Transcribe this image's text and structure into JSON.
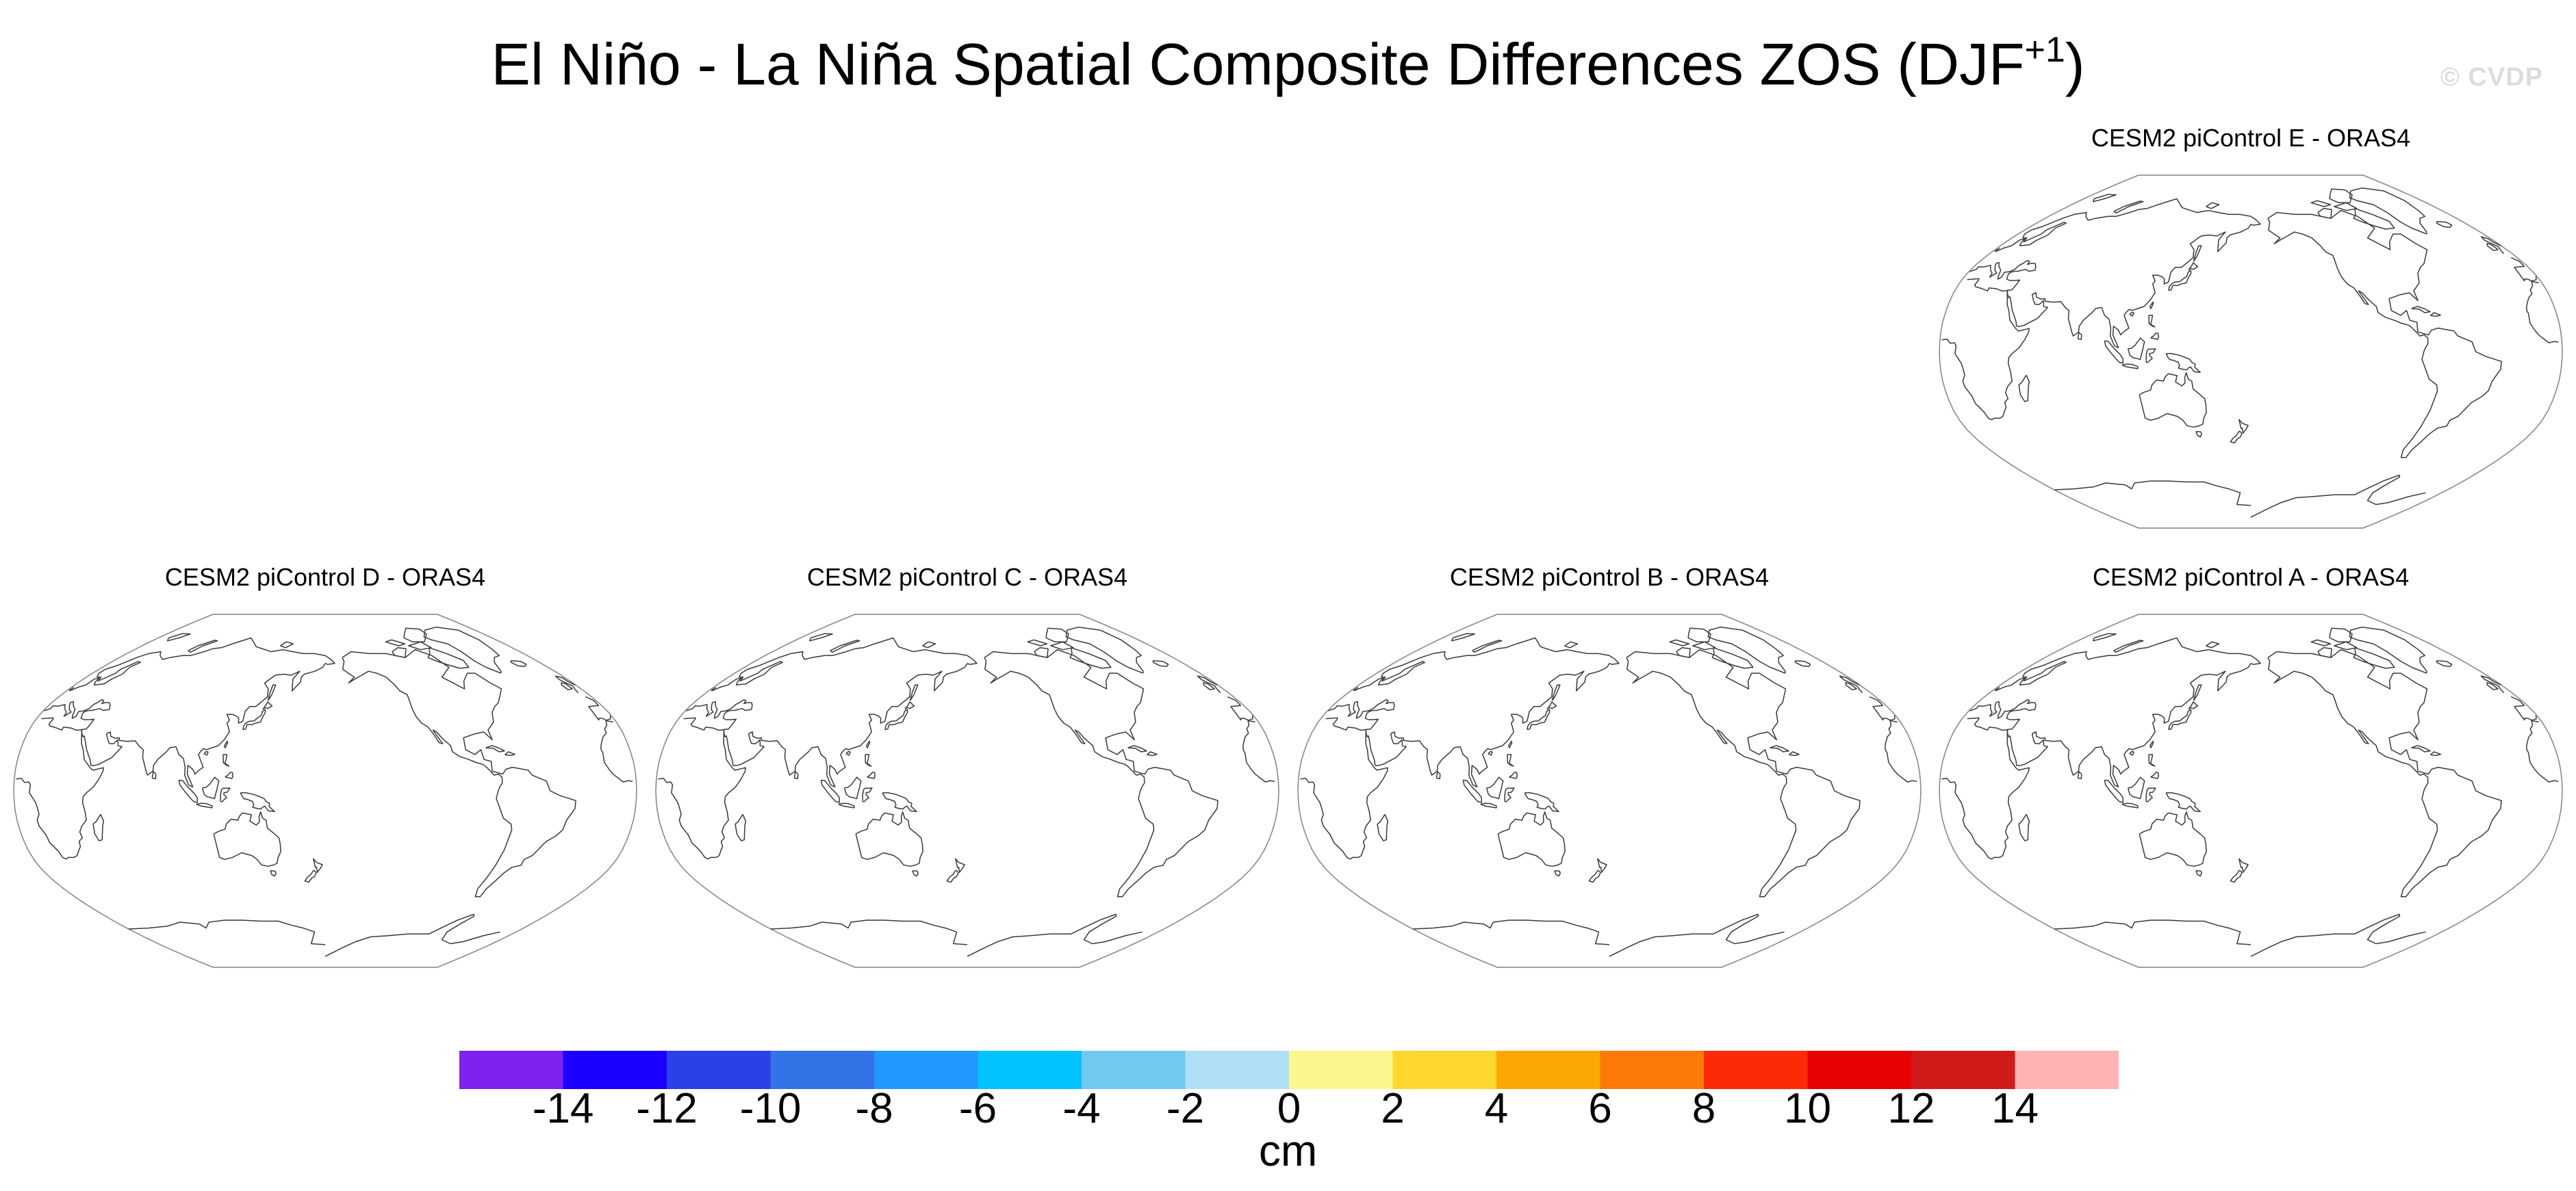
{
  "title": {
    "text": "El Niño - La Niña Spatial Composite Differences ZOS (DJF",
    "superscript": "+1",
    "suffix": ")"
  },
  "watermark": "© CVDP",
  "panels": [
    {
      "id": "E",
      "label": "CESM2 piControl E - ORAS4"
    },
    {
      "id": "D",
      "label": "CESM2 piControl D - ORAS4"
    },
    {
      "id": "C",
      "label": "CESM2 piControl C - ORAS4"
    },
    {
      "id": "B",
      "label": "CESM2 piControl B - ORAS4"
    },
    {
      "id": "A",
      "label": "CESM2 piControl A - ORAS4"
    }
  ],
  "map": {
    "projection": "robinson",
    "central_longitude": 180,
    "fill": "none",
    "coastline_color": "#3a3a3a",
    "border_color": "#8a8a8a"
  },
  "colorbar": {
    "units": "cm",
    "levels": [
      "-14",
      "-12",
      "-10",
      "-8",
      "-6",
      "-4",
      "-2",
      "0",
      "2",
      "4",
      "6",
      "8",
      "10",
      "12",
      "14"
    ],
    "colors": [
      "#7d22f0",
      "#1a00ff",
      "#2a41e8",
      "#3373e8",
      "#1f99ff",
      "#00c3ff",
      "#72c8f0",
      "#b0dff5",
      "#fbf78e",
      "#fdd72b",
      "#fca705",
      "#fd790a",
      "#fd2a08",
      "#e80202",
      "#d11a1a",
      "#ffb3b3"
    ]
  }
}
